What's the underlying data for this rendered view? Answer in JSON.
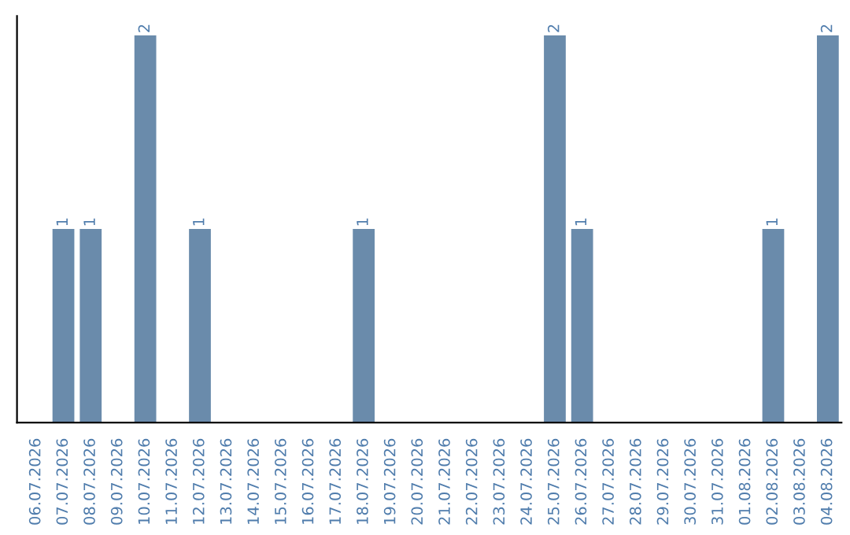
{
  "chart_data": {
    "type": "bar",
    "categories": [
      "06.07.2026",
      "07.07.2026",
      "08.07.2026",
      "09.07.2026",
      "10.07.2026",
      "11.07.2026",
      "12.07.2026",
      "13.07.2026",
      "14.07.2026",
      "15.07.2026",
      "16.07.2026",
      "17.07.2026",
      "18.07.2026",
      "19.07.2026",
      "20.07.2026",
      "21.07.2026",
      "22.07.2026",
      "23.07.2026",
      "24.07.2026",
      "25.07.2026",
      "26.07.2026",
      "27.07.2026",
      "28.07.2026",
      "29.07.2026",
      "30.07.2026",
      "31.07.2026",
      "01.08.2026",
      "02.08.2026",
      "03.08.2026",
      "04.08.2026"
    ],
    "values": [
      0,
      1,
      1,
      0,
      2,
      0,
      1,
      0,
      0,
      0,
      0,
      0,
      1,
      0,
      0,
      0,
      0,
      0,
      0,
      2,
      1,
      0,
      0,
      0,
      0,
      0,
      0,
      1,
      0,
      2
    ],
    "value_labels": [
      null,
      "1",
      "1",
      null,
      "2",
      null,
      "1",
      null,
      null,
      null,
      null,
      null,
      "1",
      null,
      null,
      null,
      null,
      null,
      null,
      "2",
      "1",
      null,
      null,
      null,
      null,
      null,
      null,
      "1",
      null,
      "2"
    ],
    "color": "#6a8bab",
    "tick_labels": "x",
    "grid": false,
    "legend": false
  }
}
